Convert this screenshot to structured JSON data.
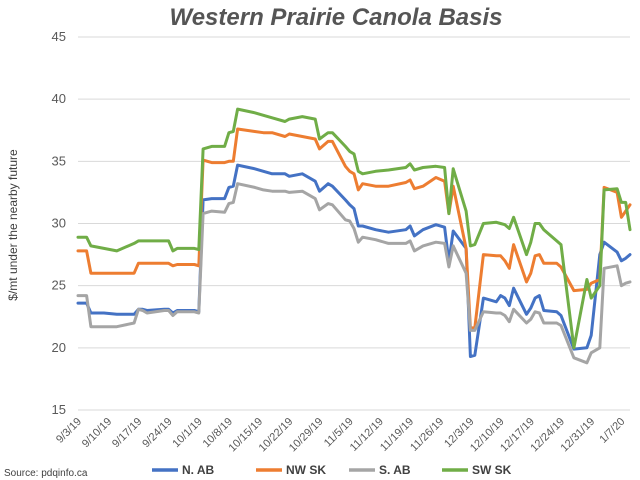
{
  "chart_data": {
    "type": "line",
    "title": "Western Prairie Canola Basis",
    "ylabel": "$/mt under the nearby future",
    "xlabel": "",
    "ylim": [
      15,
      45
    ],
    "yticks": [
      15,
      20,
      25,
      30,
      35,
      40,
      45
    ],
    "grid": "horizontal",
    "legend_position": "bottom",
    "xlim": [
      "2019-09-03",
      "2020-01-09"
    ],
    "xticks": [
      "9/3/19",
      "9/10/19",
      "9/17/19",
      "9/24/19",
      "10/1/19",
      "10/8/19",
      "10/15/19",
      "10/22/19",
      "10/29/19",
      "11/5/19",
      "11/12/19",
      "11/19/19",
      "11/26/19",
      "12/3/19",
      "12/10/19",
      "12/17/19",
      "12/24/19",
      "12/31/19",
      "1/7/20"
    ],
    "x": [
      "2019-09-03",
      "2019-09-05",
      "2019-09-06",
      "2019-09-09",
      "2019-09-12",
      "2019-09-16",
      "2019-09-17",
      "2019-09-18",
      "2019-09-19",
      "2019-09-23",
      "2019-09-24",
      "2019-09-25",
      "2019-09-26",
      "2019-09-30",
      "2019-10-01",
      "2019-10-02",
      "2019-10-04",
      "2019-10-07",
      "2019-10-08",
      "2019-10-09",
      "2019-10-10",
      "2019-10-14",
      "2019-10-16",
      "2019-10-18",
      "2019-10-21",
      "2019-10-22",
      "2019-10-25",
      "2019-10-28",
      "2019-10-29",
      "2019-10-31",
      "2019-11-01",
      "2019-11-04",
      "2019-11-05",
      "2019-11-06",
      "2019-11-07",
      "2019-11-08",
      "2019-11-11",
      "2019-11-14",
      "2019-11-18",
      "2019-11-19",
      "2019-11-20",
      "2019-11-22",
      "2019-11-25",
      "2019-11-27",
      "2019-11-28",
      "2019-11-29",
      "2019-12-02",
      "2019-12-03",
      "2019-12-04",
      "2019-12-06",
      "2019-12-09",
      "2019-12-10",
      "2019-12-11",
      "2019-12-12",
      "2019-12-13",
      "2019-12-16",
      "2019-12-17",
      "2019-12-18",
      "2019-12-19",
      "2019-12-20",
      "2019-12-23",
      "2019-12-24",
      "2019-12-27",
      "2019-12-30",
      "2019-12-31",
      "2020-01-02",
      "2020-01-03",
      "2020-01-06",
      "2020-01-07",
      "2020-01-08",
      "2020-01-09"
    ],
    "series": [
      {
        "name": "N. AB",
        "color": "#4472C4",
        "values": [
          23.6,
          23.6,
          22.8,
          22.8,
          22.7,
          22.7,
          23.1,
          23.1,
          23.0,
          23.1,
          23.1,
          22.8,
          23.0,
          23.0,
          22.9,
          31.9,
          32.0,
          32.0,
          32.9,
          33.0,
          34.7,
          34.4,
          34.2,
          34.0,
          34.0,
          33.8,
          34.0,
          33.4,
          32.6,
          33.2,
          33.0,
          31.9,
          31.5,
          31.2,
          29.8,
          29.8,
          29.5,
          29.3,
          29.5,
          29.8,
          29.0,
          29.5,
          29.9,
          29.7,
          26.9,
          29.4,
          28.0,
          19.3,
          19.4,
          24.0,
          23.7,
          24.2,
          24.0,
          23.4,
          24.8,
          22.7,
          23.2,
          24.0,
          24.2,
          23.0,
          22.9,
          22.6,
          19.9,
          20.0,
          21.0,
          27.5,
          28.5,
          27.7,
          27.0,
          27.2,
          27.5
        ]
      },
      {
        "name": "NW SK",
        "color": "#ED7D31",
        "values": [
          27.8,
          27.8,
          26.0,
          26.0,
          26.0,
          26.0,
          26.8,
          26.8,
          26.8,
          26.8,
          26.8,
          26.6,
          26.7,
          26.7,
          26.6,
          35.1,
          34.9,
          34.9,
          35.0,
          35.0,
          37.6,
          37.4,
          37.3,
          37.3,
          37.0,
          37.2,
          37.0,
          36.8,
          36.0,
          36.6,
          36.6,
          34.6,
          34.2,
          34.0,
          32.7,
          33.2,
          33.0,
          33.0,
          33.3,
          33.5,
          32.8,
          33.0,
          33.7,
          33.4,
          30.8,
          33.0,
          28.0,
          21.6,
          21.6,
          27.5,
          27.4,
          27.4,
          27.0,
          26.4,
          28.3,
          25.3,
          26.0,
          27.4,
          27.5,
          26.8,
          26.8,
          26.5,
          24.6,
          24.7,
          25.2,
          25.5,
          32.9,
          32.5,
          30.5,
          31.0,
          31.5
        ]
      },
      {
        "name": "S. AB",
        "color": "#A5A5A5",
        "values": [
          24.2,
          24.2,
          21.7,
          21.7,
          21.7,
          22.0,
          23.1,
          23.0,
          22.8,
          23.0,
          23.0,
          22.6,
          22.9,
          22.9,
          22.8,
          30.8,
          31.0,
          30.9,
          31.6,
          31.7,
          33.2,
          32.9,
          32.7,
          32.6,
          32.6,
          32.5,
          32.6,
          32.0,
          31.1,
          31.6,
          31.5,
          30.3,
          30.2,
          29.6,
          28.5,
          28.9,
          28.7,
          28.4,
          28.4,
          28.6,
          27.8,
          28.2,
          28.5,
          28.4,
          26.5,
          28.2,
          26.0,
          21.4,
          21.4,
          22.9,
          22.8,
          22.8,
          22.6,
          22.1,
          23.1,
          22.0,
          22.3,
          22.9,
          22.8,
          22.0,
          22.0,
          21.8,
          19.2,
          18.8,
          19.6,
          20.0,
          26.4,
          26.6,
          25.0,
          25.2,
          25.3
        ]
      },
      {
        "name": "SW SK",
        "color": "#70AD47",
        "values": [
          28.9,
          28.9,
          28.2,
          28.0,
          27.8,
          28.4,
          28.6,
          28.6,
          28.6,
          28.6,
          28.6,
          27.8,
          28.0,
          28.0,
          27.9,
          36.0,
          36.2,
          36.2,
          37.3,
          37.4,
          39.2,
          38.9,
          38.7,
          38.5,
          38.2,
          38.4,
          38.6,
          38.4,
          36.8,
          37.3,
          37.3,
          36.2,
          35.8,
          35.6,
          34.2,
          34.0,
          34.2,
          34.3,
          34.5,
          34.8,
          34.3,
          34.5,
          34.6,
          34.5,
          30.8,
          34.4,
          31.0,
          28.2,
          28.3,
          30.0,
          30.1,
          30.0,
          29.9,
          29.6,
          30.5,
          27.5,
          28.5,
          30.0,
          30.0,
          29.5,
          28.6,
          28.3,
          20.0,
          25.5,
          24.0,
          25.0,
          32.7,
          32.8,
          31.7,
          31.7,
          29.5
        ]
      }
    ]
  },
  "source": "Source: pdqinfo.ca"
}
